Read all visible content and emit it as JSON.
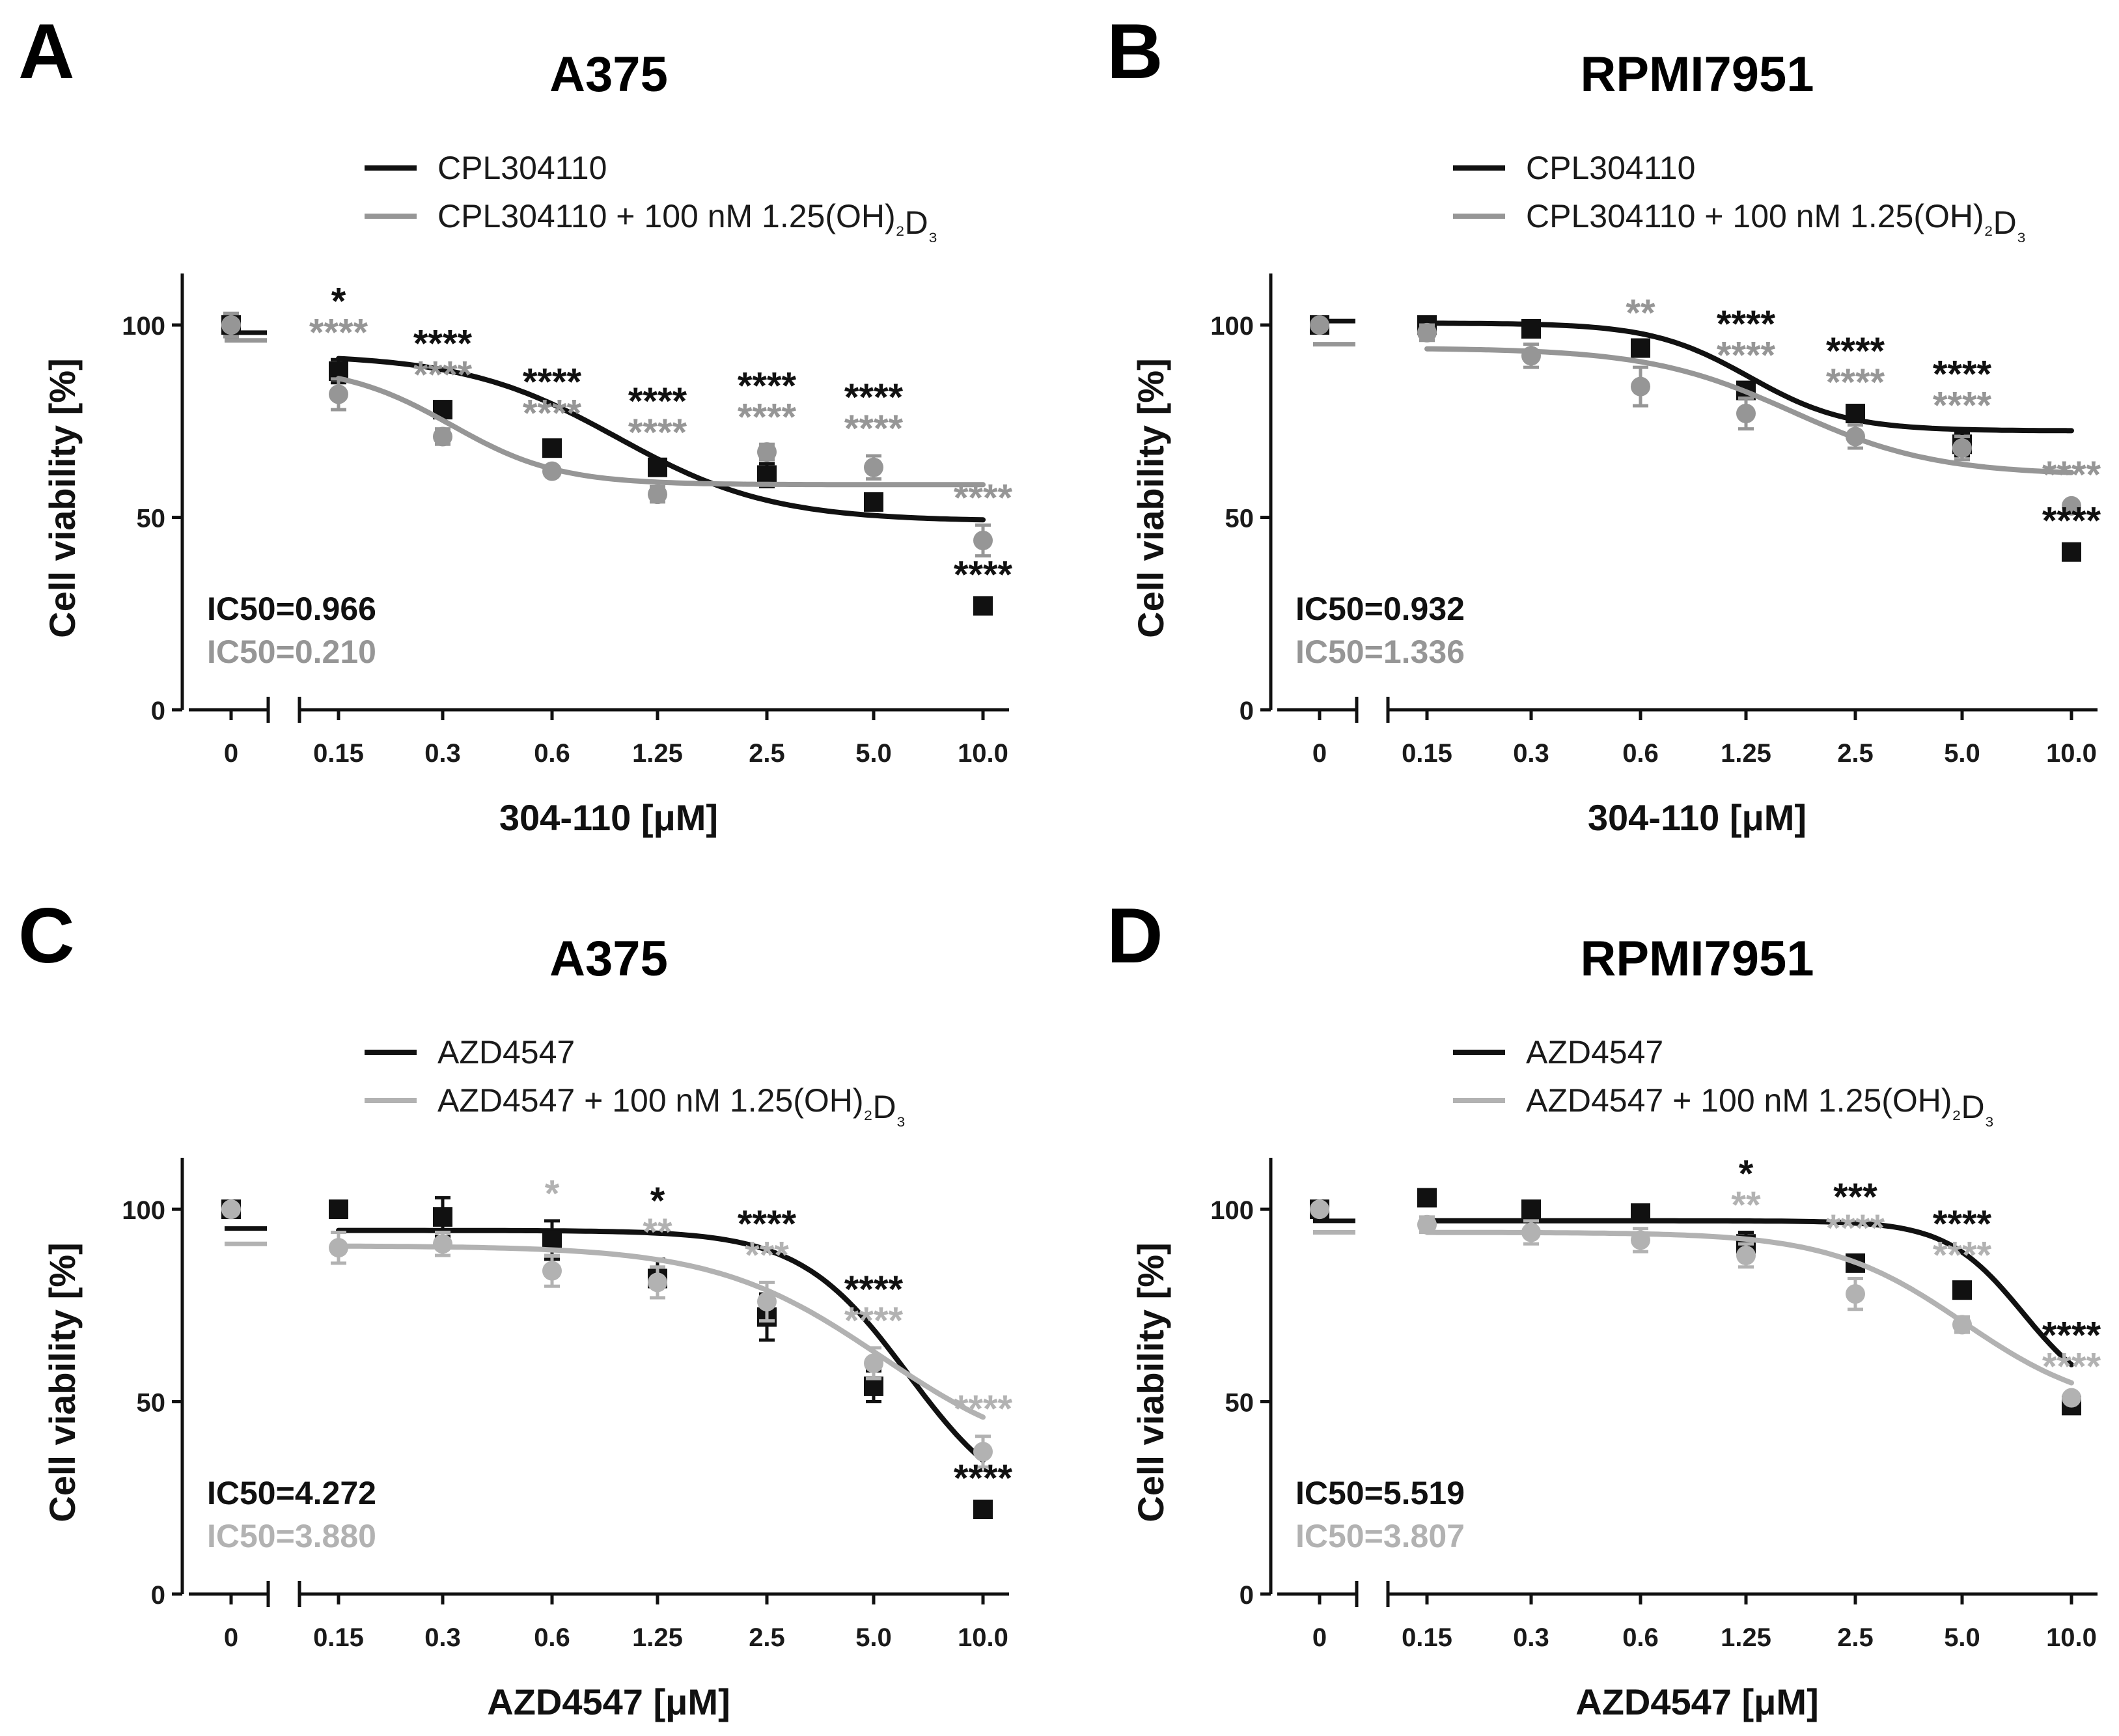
{
  "colors": {
    "black": "#111111",
    "gray": "#969696",
    "lightgray": "#b2b2b2"
  },
  "chart_data": [
    {
      "type": "line",
      "panel_label": "A",
      "title": "A375",
      "xlabel": "304-110 [μM]",
      "ylabel": "Cell viability [%]",
      "categories": [
        "0",
        "0.15",
        "0.3",
        "0.6",
        "1.25",
        "2.5",
        "5.0",
        "10.0"
      ],
      "yticks": [
        "0",
        "50",
        "100"
      ],
      "ylim": [
        0,
        110
      ],
      "legend": [
        "CPL304110",
        "CPL304110 + 100 nM 1.25(OH)₂D₃"
      ],
      "series": [
        {
          "name": "CPL304110",
          "marker": "square",
          "color": "#111111",
          "values": [
            100,
            88,
            78,
            68,
            63,
            61,
            54,
            27
          ],
          "errors": [
            3,
            3,
            2,
            2,
            2,
            3,
            2,
            1
          ],
          "fit": {
            "top": 92.4,
            "bottom": 49,
            "mid": 3.6,
            "slope": 1.4,
            "zero_level": 98
          },
          "ic50": "IC50=0.966",
          "stars": [
            "",
            "*",
            "****",
            "****",
            "****",
            "****",
            "****",
            "****"
          ]
        },
        {
          "name": "CPL304110 + 100 nM 1.25(OH)₂D₃",
          "marker": "circle",
          "color": "#969696",
          "values": [
            100,
            82,
            71,
            62,
            56,
            67,
            63,
            44
          ],
          "errors": [
            3,
            4,
            2,
            1,
            2,
            2,
            3,
            4
          ],
          "fit": {
            "top": 89.5,
            "bottom": 58.5,
            "mid": 2.05,
            "slope": 2.0,
            "zero_level": 96
          },
          "ic50": "IC50=0.210",
          "stars": [
            "",
            "****",
            "****",
            "****",
            "****",
            "****",
            "****",
            "****"
          ]
        }
      ]
    },
    {
      "type": "line",
      "panel_label": "B",
      "title": "RPMI7951",
      "xlabel": "304-110 [μM]",
      "ylabel": "Cell viability [%]",
      "categories": [
        "0",
        "0.15",
        "0.3",
        "0.6",
        "1.25",
        "2.5",
        "5.0",
        "10.0"
      ],
      "yticks": [
        "0",
        "50",
        "100"
      ],
      "ylim": [
        0,
        110
      ],
      "legend": [
        "CPL304110",
        "CPL304110 + 100 nM 1.25(OH)₂D₃"
      ],
      "series": [
        {
          "name": "CPL304110",
          "marker": "square",
          "color": "#111111",
          "values": [
            100,
            100,
            99,
            94,
            83,
            77,
            69,
            41
          ],
          "errors": [
            1,
            1,
            1,
            2,
            2,
            1,
            3,
            1
          ],
          "fit": {
            "top": 100.5,
            "bottom": 72.5,
            "mid": 4.0,
            "slope": 2.2,
            "zero_level": 101
          },
          "ic50": "IC50=0.932",
          "stars": [
            "",
            "",
            "",
            "",
            "****",
            "****",
            "****",
            "****"
          ]
        },
        {
          "name": "CPL304110 + 100 nM 1.25(OH)₂D₃",
          "marker": "circle",
          "color": "#969696",
          "values": [
            100,
            98,
            92,
            84,
            77,
            71,
            68,
            53
          ],
          "errors": [
            1,
            2,
            3,
            5,
            4,
            3,
            3,
            1
          ],
          "fit": {
            "top": 94,
            "bottom": 61,
            "mid": 4.4,
            "slope": 1.5,
            "zero_level": 95
          },
          "ic50": "IC50=1.336",
          "stars": [
            "",
            "",
            "",
            "**",
            "****",
            "****",
            "****",
            "****"
          ]
        }
      ]
    },
    {
      "type": "line",
      "panel_label": "C",
      "title": "A375",
      "xlabel": "AZD4547 [μM]",
      "ylabel": "Cell viability [%]",
      "categories": [
        "0",
        "0.15",
        "0.3",
        "0.6",
        "1.25",
        "2.5",
        "5.0",
        "10.0"
      ],
      "yticks": [
        "0",
        "50",
        "100"
      ],
      "ylim": [
        0,
        110
      ],
      "legend": [
        "AZD4547",
        "AZD4547 + 100 nM 1.25(OH)₂D₃"
      ],
      "series": [
        {
          "name": "AZD4547",
          "marker": "square",
          "color": "#111111",
          "values": [
            100,
            100,
            98,
            92,
            82,
            72,
            54,
            22
          ],
          "errors": [
            1,
            2,
            5,
            5,
            5,
            6,
            4,
            1
          ],
          "fit": {
            "top": 94.5,
            "bottom": 20,
            "mid": 6.3,
            "slope": 2.0,
            "zero_level": 95
          },
          "ic50": "IC50=4.272",
          "stars": [
            "",
            "",
            "",
            "",
            "*",
            "****",
            "****",
            "****"
          ]
        },
        {
          "name": "AZD4547 + 100 nM 1.25(OH)₂D₃",
          "marker": "circle",
          "color": "#b2b2b2",
          "values": [
            100,
            90,
            91,
            84,
            81,
            76,
            60,
            37
          ],
          "errors": [
            1,
            4,
            3,
            4,
            4,
            5,
            4,
            4
          ],
          "fit": {
            "top": 90.5,
            "bottom": 33,
            "mid": 6.05,
            "slope": 1.3,
            "zero_level": 91
          },
          "ic50": "IC50=3.880",
          "stars": [
            "",
            "",
            "",
            "*",
            "**",
            "***",
            "****",
            "****"
          ]
        }
      ]
    },
    {
      "type": "line",
      "panel_label": "D",
      "title": "RPMI7951",
      "xlabel": "AZD4547 [μM]",
      "ylabel": "Cell viability [%]",
      "categories": [
        "0",
        "0.15",
        "0.3",
        "0.6",
        "1.25",
        "2.5",
        "5.0",
        "10.0"
      ],
      "yticks": [
        "0",
        "50",
        "100"
      ],
      "ylim": [
        0,
        110
      ],
      "legend": [
        "AZD4547",
        "AZD4547 + 100 nM 1.25(OH)₂D₃"
      ],
      "series": [
        {
          "name": "AZD4547",
          "marker": "square",
          "color": "#111111",
          "values": [
            100,
            103,
            100,
            99,
            91,
            86,
            79,
            49
          ],
          "errors": [
            1,
            2,
            1,
            2,
            3,
            2,
            2,
            1
          ],
          "fit": {
            "top": 97,
            "bottom": 49,
            "mid": 6.55,
            "slope": 2.8,
            "zero_level": 97
          },
          "ic50": "IC50=5.519",
          "stars": [
            "",
            "",
            "",
            "",
            "*",
            "***",
            "****",
            "****"
          ]
        },
        {
          "name": "AZD4547 + 100 nM 1.25(OH)₂D₃",
          "marker": "circle",
          "color": "#b2b2b2",
          "values": [
            100,
            96,
            94,
            92,
            88,
            78,
            70,
            51
          ],
          "errors": [
            1,
            2,
            3,
            3,
            3,
            4,
            2,
            1
          ],
          "fit": {
            "top": 94,
            "bottom": 47,
            "mid": 6.0,
            "slope": 1.6,
            "zero_level": 94
          },
          "ic50": "IC50=3.807",
          "stars": [
            "",
            "",
            "",
            "",
            "**",
            "****",
            "****",
            "****"
          ]
        }
      ]
    }
  ]
}
